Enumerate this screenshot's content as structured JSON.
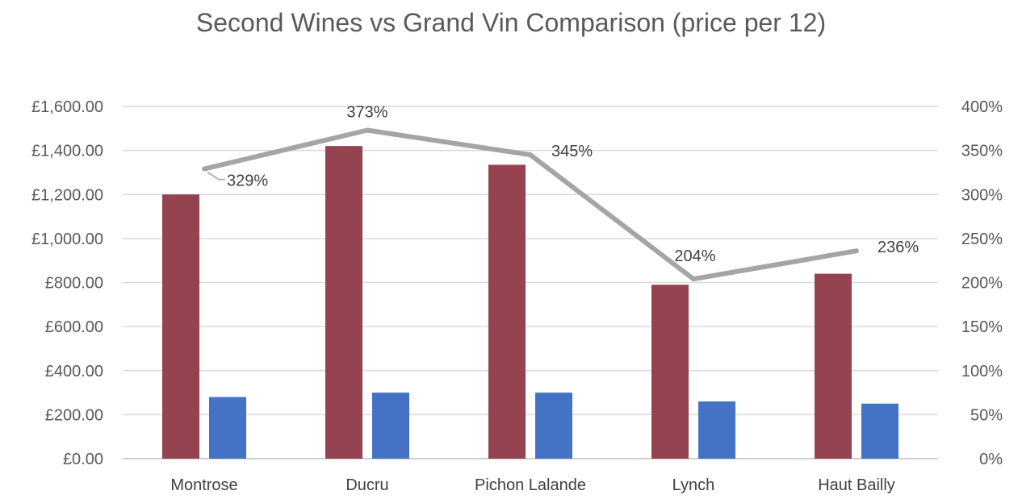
{
  "chart_data": {
    "type": "bar",
    "title": "Second Wines vs Grand Vin Comparison (price per 12)",
    "categories": [
      "Montrose",
      "Ducru",
      "Pichon Lalande",
      "Lynch",
      "Haut Bailly"
    ],
    "series": [
      {
        "kind": "bar",
        "axis": "left",
        "color": "#954351",
        "values": [
          1200,
          1420,
          1335,
          790,
          840
        ]
      },
      {
        "kind": "bar",
        "axis": "left",
        "color": "#4472C4",
        "values": [
          280,
          300,
          300,
          260,
          250
        ]
      },
      {
        "kind": "line",
        "axis": "right",
        "color": "#A5A5A5",
        "values": [
          329,
          373,
          345,
          204,
          236
        ],
        "labels": [
          "329%",
          "373%",
          "345%",
          "204%",
          "236%"
        ]
      }
    ],
    "y_left": {
      "min": 0,
      "max": 1600,
      "step": 200,
      "ticks": [
        "£0.00",
        "£200.00",
        "£400.00",
        "£600.00",
        "£800.00",
        "£1,000.00",
        "£1,200.00",
        "£1,400.00",
        "£1,600.00"
      ]
    },
    "y_right": {
      "min": 0,
      "max": 400,
      "step": 50,
      "ticks": [
        "0%",
        "50%",
        "100%",
        "150%",
        "200%",
        "250%",
        "300%",
        "350%",
        "400%"
      ]
    },
    "grid": true,
    "legend": "none"
  }
}
